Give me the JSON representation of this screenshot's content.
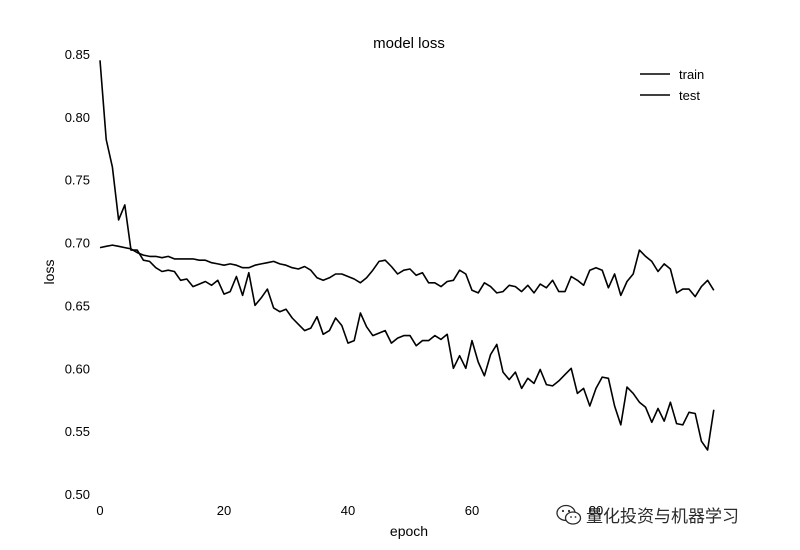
{
  "chart_data": {
    "type": "line",
    "title": "model loss",
    "xlabel": "epoch",
    "ylabel": "loss",
    "xlim": [
      0,
      100
    ],
    "ylim": [
      0.5,
      0.85
    ],
    "xticks": [
      0,
      20,
      40,
      60,
      80
    ],
    "xtick_labels": [
      "0",
      "20",
      "40",
      "60",
      "80"
    ],
    "yticks": [
      0.5,
      0.55,
      0.6,
      0.65,
      0.7,
      0.75,
      0.8,
      0.85
    ],
    "ytick_labels": [
      "0.50",
      "0.55",
      "0.60",
      "0.65",
      "0.70",
      "0.75",
      "0.80",
      "0.85"
    ],
    "grid": false,
    "legend_position": "top-right",
    "series": [
      {
        "name": "train",
        "values": [
          0.845,
          0.782,
          0.76,
          0.718,
          0.73,
          0.694,
          0.694,
          0.686,
          0.685,
          0.68,
          0.677,
          0.678,
          0.677,
          0.67,
          0.671,
          0.665,
          0.667,
          0.669,
          0.666,
          0.67,
          0.659,
          0.661,
          0.673,
          0.658,
          0.676,
          0.65,
          0.656,
          0.663,
          0.648,
          0.645,
          0.647,
          0.64,
          0.635,
          0.63,
          0.632,
          0.641,
          0.627,
          0.63,
          0.64,
          0.634,
          0.62,
          0.622,
          0.644,
          0.633,
          0.626,
          0.628,
          0.63,
          0.62,
          0.624,
          0.626,
          0.626,
          0.618,
          0.622,
          0.622,
          0.626,
          0.623,
          0.627,
          0.6,
          0.61,
          0.6,
          0.622,
          0.605,
          0.594,
          0.611,
          0.619,
          0.597,
          0.591,
          0.597,
          0.584,
          0.592,
          0.588,
          0.599,
          0.587,
          0.586,
          0.59,
          0.595,
          0.6,
          0.58,
          0.584,
          0.57,
          0.584,
          0.593,
          0.592,
          0.57,
          0.555,
          0.585,
          0.58,
          0.573,
          0.569,
          0.557,
          0.568,
          0.558,
          0.573,
          0.556,
          0.555,
          0.565,
          0.564,
          0.542,
          0.535,
          0.567
        ]
      },
      {
        "name": "test",
        "values": [
          0.696,
          0.697,
          0.698,
          0.697,
          0.696,
          0.695,
          0.692,
          0.69,
          0.689,
          0.689,
          0.688,
          0.689,
          0.687,
          0.687,
          0.687,
          0.687,
          0.686,
          0.686,
          0.684,
          0.683,
          0.682,
          0.683,
          0.682,
          0.68,
          0.68,
          0.682,
          0.683,
          0.684,
          0.685,
          0.683,
          0.682,
          0.68,
          0.679,
          0.681,
          0.678,
          0.672,
          0.67,
          0.672,
          0.675,
          0.675,
          0.673,
          0.671,
          0.668,
          0.672,
          0.678,
          0.685,
          0.686,
          0.681,
          0.675,
          0.678,
          0.679,
          0.674,
          0.676,
          0.668,
          0.668,
          0.665,
          0.669,
          0.67,
          0.678,
          0.675,
          0.662,
          0.66,
          0.668,
          0.665,
          0.66,
          0.661,
          0.666,
          0.665,
          0.661,
          0.666,
          0.66,
          0.667,
          0.664,
          0.67,
          0.661,
          0.661,
          0.673,
          0.67,
          0.666,
          0.678,
          0.68,
          0.678,
          0.664,
          0.675,
          0.658,
          0.669,
          0.675,
          0.694,
          0.689,
          0.685,
          0.677,
          0.683,
          0.679,
          0.66,
          0.663,
          0.663,
          0.657,
          0.665,
          0.67,
          0.662
        ]
      }
    ]
  },
  "watermark": {
    "text": "量化投资与机器学习",
    "icon": "wechat-icon"
  },
  "colors": {
    "line": "#000000",
    "background": "#ffffff"
  }
}
